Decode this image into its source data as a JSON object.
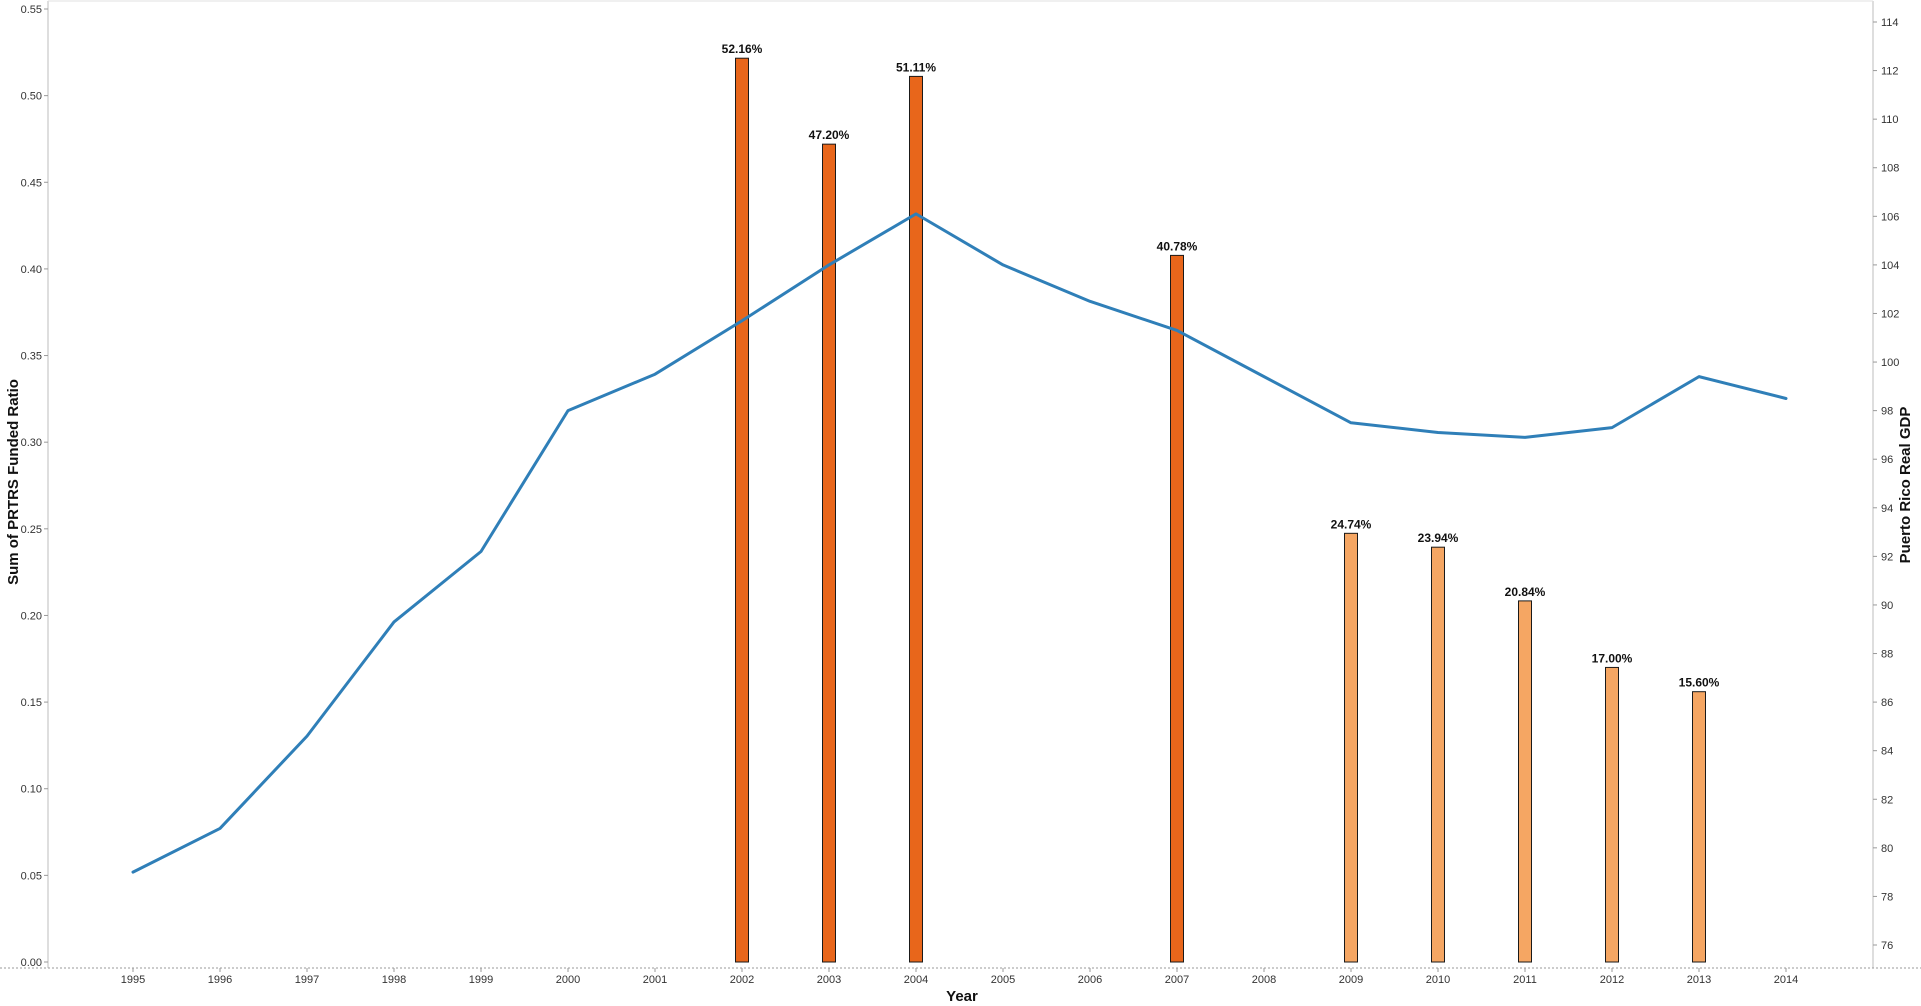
{
  "chart_data": {
    "type": "bar",
    "x_label": "Year",
    "y_left_label": "Sum of PRTRS Funded Ratio",
    "y_right_label": "Puerto Rico Real GDP",
    "left_ylim": [
      0,
      0.55
    ],
    "left_ticks": [
      "0.00",
      "0.05",
      "0.10",
      "0.15",
      "0.20",
      "0.25",
      "0.30",
      "0.35",
      "0.40",
      "0.45",
      "0.50",
      "0.55"
    ],
    "right_ylim": [
      75,
      115
    ],
    "right_ticks": [
      "76",
      "78",
      "80",
      "82",
      "84",
      "86",
      "88",
      "90",
      "92",
      "94",
      "96",
      "98",
      "100",
      "102",
      "104",
      "106",
      "108",
      "110",
      "112",
      "114"
    ],
    "categories": [
      "1995",
      "1996",
      "1997",
      "1998",
      "1999",
      "2000",
      "2001",
      "2002",
      "2003",
      "2004",
      "2005",
      "2006",
      "2007",
      "2008",
      "2009",
      "2010",
      "2011",
      "2012",
      "2013",
      "2014"
    ],
    "series": [
      {
        "name": "Sum of PRTRS Funded Ratio",
        "kind": "bar",
        "axis": "left",
        "values": [
          null,
          null,
          null,
          null,
          null,
          null,
          null,
          0.5216,
          0.472,
          0.5111,
          null,
          null,
          0.4078,
          null,
          0.2474,
          0.2394,
          0.2084,
          0.17,
          0.156,
          null
        ],
        "labels": [
          null,
          null,
          null,
          null,
          null,
          null,
          null,
          "52.16%",
          "47.20%",
          "51.11%",
          null,
          null,
          "40.78%",
          null,
          "24.74%",
          "23.94%",
          "20.84%",
          "17.00%",
          "15.60%",
          null
        ],
        "colors": [
          null,
          null,
          null,
          null,
          null,
          null,
          null,
          "#e8661b",
          "#e8661b",
          "#e8661b",
          null,
          null,
          "#e8661b",
          null,
          "#f5a663",
          "#f5a663",
          "#f5a663",
          "#f5a663",
          "#f5a663",
          null
        ]
      },
      {
        "name": "Puerto Rico Real GDP",
        "kind": "line",
        "axis": "right",
        "color": "#2f7fb8",
        "values": [
          79.0,
          80.8,
          84.6,
          89.3,
          92.2,
          98.0,
          99.5,
          101.7,
          104.0,
          106.1,
          104.0,
          102.5,
          101.3,
          99.4,
          97.5,
          97.1,
          96.9,
          97.3,
          99.4,
          98.5
        ]
      }
    ],
    "grid": false
  }
}
